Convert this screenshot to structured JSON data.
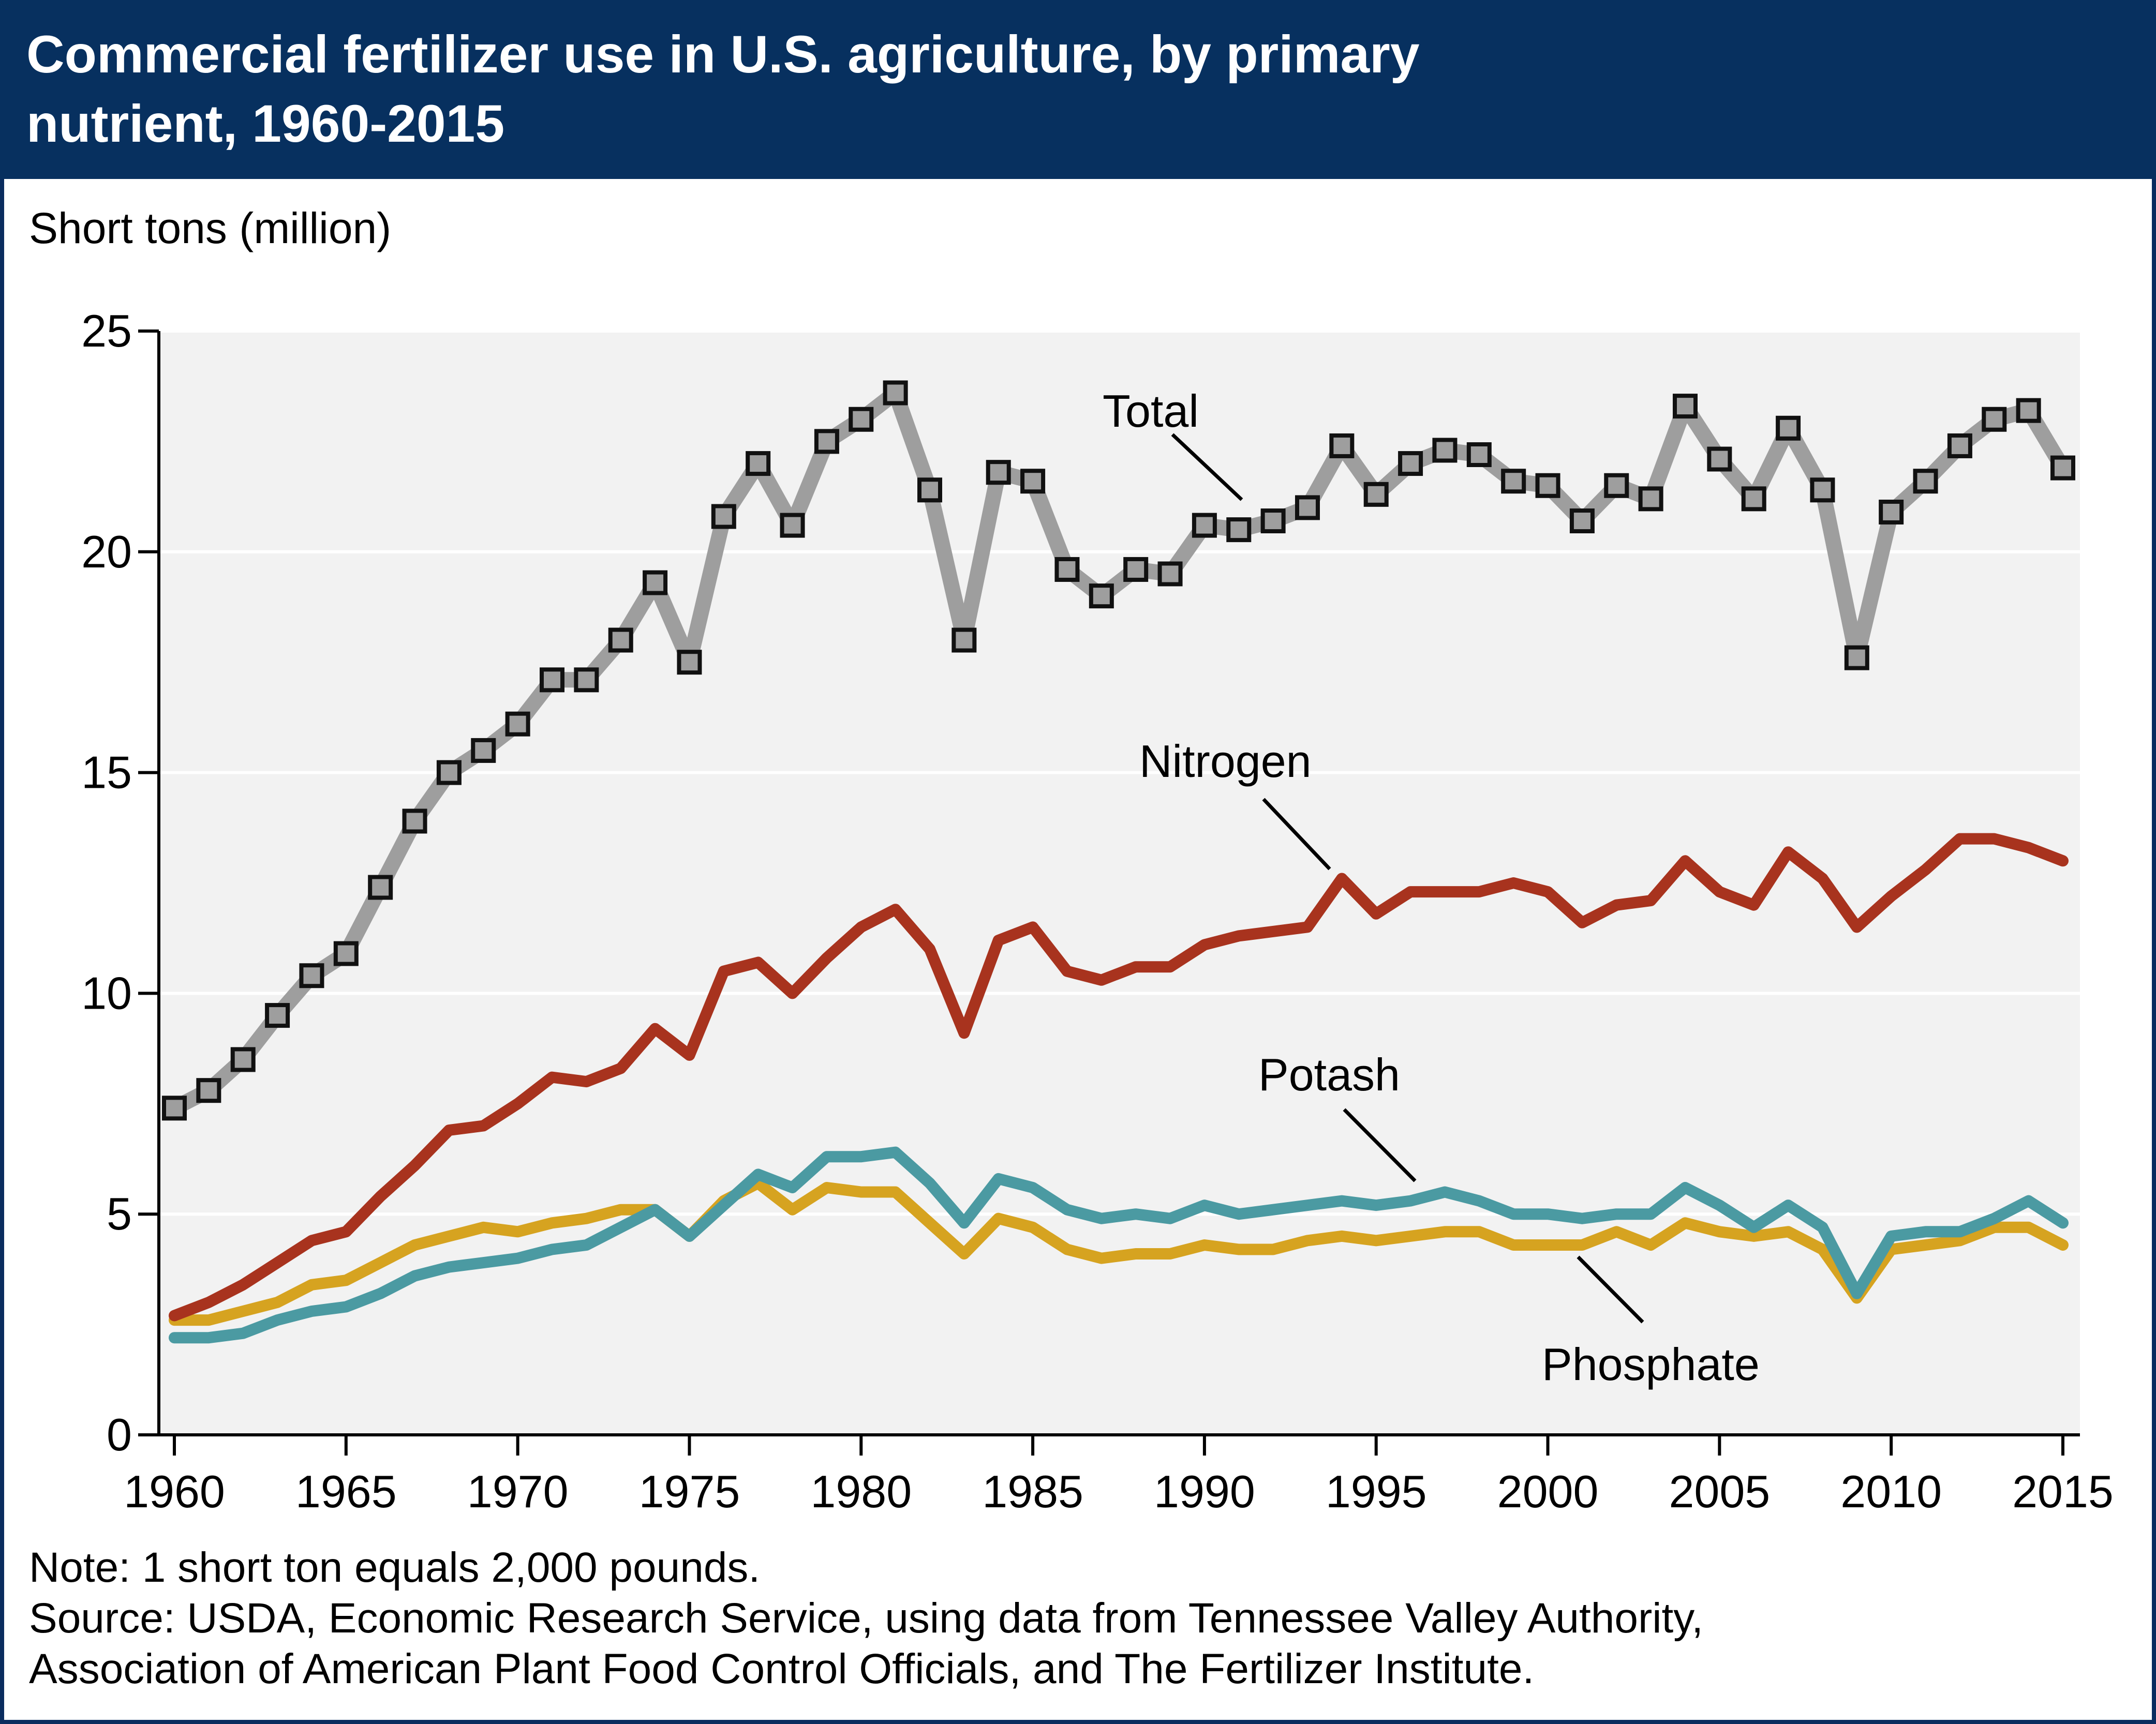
{
  "header": {
    "title": "Commercial fertilizer use in U.S. agriculture, by primary\nnutrient, 1960-2015"
  },
  "footer": {
    "note": "Note: 1 short ton equals 2,000 pounds.",
    "source_line1": "Source: USDA, Economic Research Service, using data from Tennessee Valley Authority,",
    "source_line2": "Association of American Plant Food Control Officials, and The Fertilizer Institute."
  },
  "colors": {
    "title_bar": "#07305f",
    "plot_background": "#f2f2f2",
    "gridline": "#ffffff",
    "total": "#9e9e9e",
    "nitrogen": "#a8331e",
    "potash": "#4b9aa2",
    "phosphate": "#d6a320"
  },
  "chart_data": {
    "type": "line",
    "ylabel": "Short tons (million)",
    "ylim": [
      0,
      25
    ],
    "yticks": [
      "0",
      "5",
      "10",
      "15",
      "20",
      "25"
    ],
    "xlim": [
      1960,
      2015
    ],
    "xticks": [
      "1960",
      "1965",
      "1970",
      "1975",
      "1980",
      "1985",
      "1990",
      "1995",
      "2000",
      "2005",
      "2010",
      "2015"
    ],
    "grid": "horizontal",
    "legend": "direct labels",
    "x": [
      1960,
      1961,
      1962,
      1963,
      1964,
      1965,
      1966,
      1967,
      1968,
      1969,
      1970,
      1971,
      1972,
      1973,
      1974,
      1975,
      1976,
      1977,
      1978,
      1979,
      1980,
      1981,
      1982,
      1983,
      1984,
      1985,
      1986,
      1987,
      1988,
      1989,
      1990,
      1991,
      1992,
      1993,
      1994,
      1995,
      1996,
      1997,
      1998,
      1999,
      2000,
      2001,
      2002,
      2003,
      2004,
      2005,
      2006,
      2007,
      2008,
      2009,
      2010,
      2011,
      2012,
      2013,
      2014,
      2015
    ],
    "series": [
      {
        "name": "Total",
        "color": "#9e9e9e",
        "markers": "square",
        "values": [
          7.4,
          7.8,
          8.5,
          9.5,
          10.4,
          10.9,
          12.4,
          13.9,
          15.0,
          15.5,
          16.1,
          17.1,
          17.1,
          18.0,
          19.3,
          17.5,
          20.8,
          22.0,
          20.6,
          22.5,
          23.0,
          23.6,
          21.4,
          18.0,
          21.8,
          21.6,
          19.6,
          19.0,
          19.6,
          19.5,
          20.6,
          20.5,
          20.7,
          21.0,
          22.4,
          21.3,
          22.0,
          22.3,
          22.2,
          21.6,
          21.5,
          20.7,
          21.5,
          21.2,
          23.3,
          22.1,
          21.2,
          22.8,
          21.4,
          17.6,
          20.9,
          21.6,
          22.4,
          23.0,
          23.2,
          21.9
        ]
      },
      {
        "name": "Nitrogen",
        "color": "#a8331e",
        "values": [
          2.7,
          3.0,
          3.4,
          3.9,
          4.4,
          4.6,
          5.4,
          6.1,
          6.9,
          7.0,
          7.5,
          8.1,
          8.0,
          8.3,
          9.2,
          8.6,
          10.5,
          10.7,
          10.0,
          10.8,
          11.5,
          11.9,
          11.0,
          9.1,
          11.2,
          11.5,
          10.5,
          10.3,
          10.6,
          10.6,
          11.1,
          11.3,
          11.4,
          11.5,
          12.6,
          11.8,
          12.3,
          12.3,
          12.3,
          12.5,
          12.3,
          11.6,
          12.0,
          12.1,
          13.0,
          12.3,
          12.0,
          13.2,
          12.6,
          11.5,
          12.2,
          12.8,
          13.5,
          13.5,
          13.3,
          13.0
        ]
      },
      {
        "name": "Potash",
        "color": "#4b9aa2",
        "values": [
          2.2,
          2.2,
          2.3,
          2.6,
          2.8,
          2.9,
          3.2,
          3.6,
          3.8,
          3.9,
          4.0,
          4.2,
          4.3,
          4.7,
          5.1,
          4.5,
          5.2,
          5.9,
          5.6,
          6.3,
          6.3,
          6.4,
          5.7,
          4.8,
          5.8,
          5.6,
          5.1,
          4.9,
          5.0,
          4.9,
          5.2,
          5.0,
          5.1,
          5.2,
          5.3,
          5.2,
          5.3,
          5.5,
          5.3,
          5.0,
          5.0,
          4.9,
          5.0,
          5.0,
          5.6,
          5.2,
          4.7,
          5.2,
          4.7,
          3.2,
          4.5,
          4.6,
          4.6,
          4.9,
          5.3,
          4.8
        ]
      },
      {
        "name": "Phosphate",
        "color": "#d6a320",
        "values": [
          2.6,
          2.6,
          2.8,
          3.0,
          3.4,
          3.5,
          3.9,
          4.3,
          4.5,
          4.7,
          4.6,
          4.8,
          4.9,
          5.1,
          5.1,
          4.5,
          5.3,
          5.7,
          5.1,
          5.6,
          5.5,
          5.5,
          4.8,
          4.1,
          4.9,
          4.7,
          4.2,
          4.0,
          4.1,
          4.1,
          4.3,
          4.2,
          4.2,
          4.4,
          4.5,
          4.4,
          4.5,
          4.6,
          4.6,
          4.3,
          4.3,
          4.3,
          4.6,
          4.3,
          4.8,
          4.6,
          4.5,
          4.6,
          4.2,
          3.1,
          4.2,
          4.3,
          4.4,
          4.7,
          4.7,
          4.3
        ]
      }
    ]
  }
}
